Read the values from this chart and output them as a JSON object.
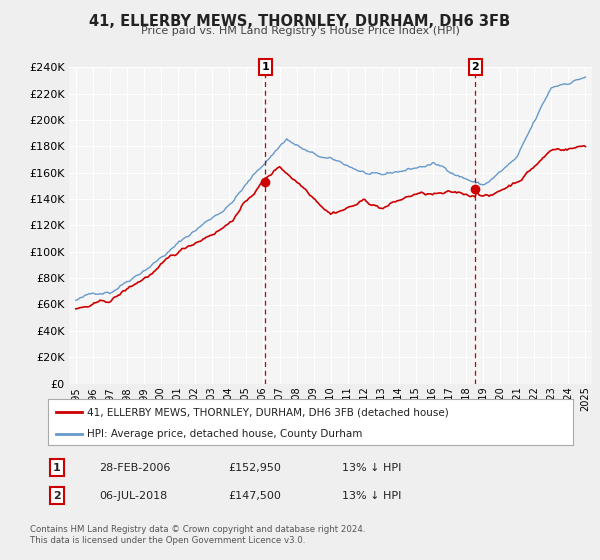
{
  "title": "41, ELLERBY MEWS, THORNLEY, DURHAM, DH6 3FB",
  "subtitle": "Price paid vs. HM Land Registry's House Price Index (HPI)",
  "legend_label_red": "41, ELLERBY MEWS, THORNLEY, DURHAM, DH6 3FB (detached house)",
  "legend_label_blue": "HPI: Average price, detached house, County Durham",
  "footer": "Contains HM Land Registry data © Crown copyright and database right 2024.\nThis data is licensed under the Open Government Licence v3.0.",
  "sale1_label": "1",
  "sale1_date": "28-FEB-2006",
  "sale1_price": "£152,950",
  "sale1_hpi": "13% ↓ HPI",
  "sale2_label": "2",
  "sale2_date": "06-JUL-2018",
  "sale2_price": "£147,500",
  "sale2_hpi": "13% ↓ HPI",
  "sale1_x": 2006.15,
  "sale1_y": 152950,
  "sale2_x": 2018.51,
  "sale2_y": 147500,
  "vline1_x": 2006.15,
  "vline2_x": 2018.51,
  "ylim": [
    0,
    240000
  ],
  "yticks": [
    0,
    20000,
    40000,
    60000,
    80000,
    100000,
    120000,
    140000,
    160000,
    180000,
    200000,
    220000,
    240000
  ],
  "xlim_start": 1994.6,
  "xlim_end": 2025.4,
  "background_color": "#efefef",
  "plot_bg_color": "#f5f5f5",
  "red_color": "#cc0000",
  "blue_color": "#6699cc",
  "grid_color": "#ffffff"
}
